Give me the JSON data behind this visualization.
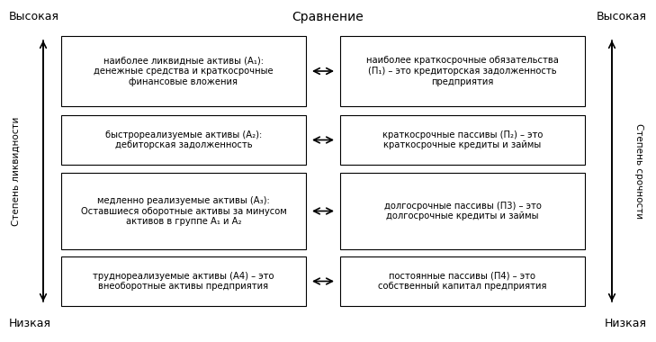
{
  "title_top": "Сравнение",
  "label_left_top": "Высокая",
  "label_right_top": "Высокая",
  "label_left_bottom": "Низкая",
  "label_right_bottom": "Низкая",
  "left_arrow_label": "Степень ликвидности",
  "right_arrow_label": "Степень срочности",
  "boxes_left": [
    "наиболее ликвидные активы (А₁):\nденежные средства и краткосрочные\nфинансовые вложения",
    "быстрореализуемые активы (А₂):\nдебиторская задолженность",
    "медленно реализуемые активы (А₃):\nОставшиеся оборотные активы за минусом\nактивов в группе А₁ и А₂",
    "труднореализуемые активы (А4) – это\nвнеоборотные активы предприятия"
  ],
  "boxes_right": [
    "наиболее краткосрочные обязательства\n(П₁) – это кредиторская задолженность\nпредприятия",
    "краткосрочные пассивы (П₂) – это\nкраткосрочные кредиты и займы",
    "долгосрочные пассивы (П3) – это\nдолгосрочные кредиты и займы",
    "постоянные пассивы (П4) – это\nсобственный капитал предприятия"
  ],
  "box_facecolor": "white",
  "box_edgecolor": "black",
  "arrow_color": "black",
  "text_color": "black",
  "bg_color": "white",
  "fontsize": 7.2,
  "title_fontsize": 10,
  "label_fontsize": 9,
  "axis_label_fontsize": 7.5
}
